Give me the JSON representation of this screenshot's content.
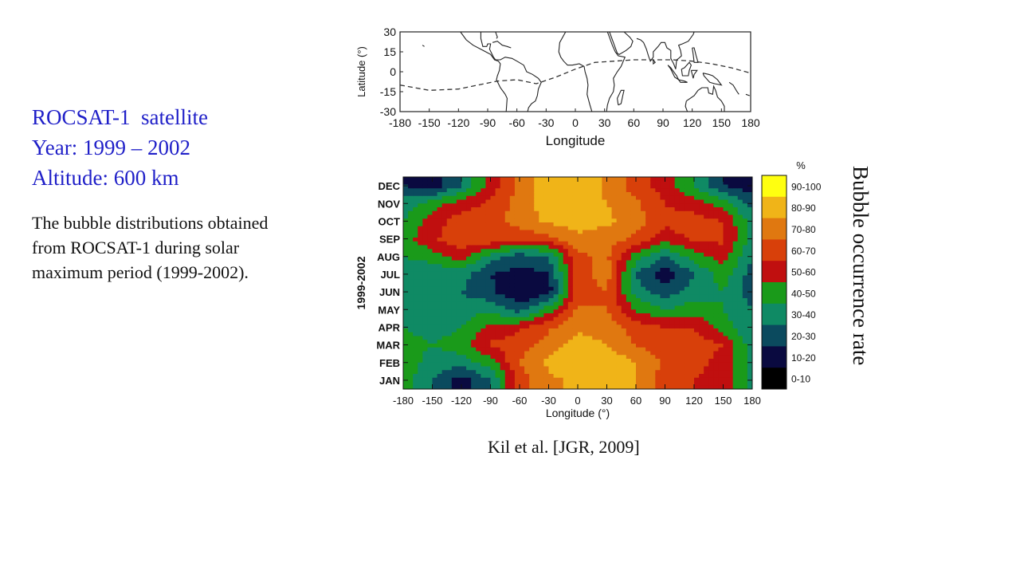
{
  "info": {
    "line1": "ROCSAT-1  satellite",
    "line2": "Year: 1999 – 2002",
    "line3": "Altitude: 600 km",
    "desc": [
      "The bubble distributions obtained",
      "from ROCSAT-1 during solar",
      "maximum period (1999-2002)."
    ]
  },
  "citation": "Kil et al. [JGR, 2009]",
  "rotated_label": "Bubble occurrence rate",
  "colors": {
    "scale": [
      "#000000",
      "#0a0a40",
      "#0b4a5e",
      "#0f8a64",
      "#1a9a1a",
      "#c00f0f",
      "#d8400a",
      "#e07810",
      "#f0b418",
      "#ffff10"
    ],
    "map_line": "#222222"
  },
  "chart_data": [
    {
      "type": "map",
      "xlabel": "Longitude",
      "ylabel": "Latitude (°)",
      "x_ticks": [
        "-180",
        "-150",
        "-120",
        "-90",
        "-60",
        "-30",
        "0",
        "30",
        "60",
        "90",
        "120",
        "150",
        "180"
      ],
      "y_ticks": [
        "30",
        "15",
        "0",
        "-15",
        "-30"
      ],
      "xlim": [
        -180,
        180
      ],
      "ylim": [
        -30,
        30
      ],
      "features": [
        "coastlines",
        "dip equator (dashed)"
      ]
    },
    {
      "type": "heatmap",
      "xlabel": "Longitude (°)",
      "ylabel": "1999-2002",
      "x_ticks": [
        "-180",
        "-150",
        "-120",
        "-90",
        "-60",
        "-30",
        "0",
        "30",
        "60",
        "90",
        "120",
        "150",
        "180"
      ],
      "xlim": [
        -180,
        180
      ],
      "months": [
        "JAN",
        "FEB",
        "MAR",
        "APR",
        "MAY",
        "JUN",
        "JUL",
        "AUG",
        "SEP",
        "OCT",
        "NOV",
        "DEC"
      ],
      "legend_unit": "%",
      "legend": [
        "90-100",
        "80-90",
        "70-80",
        "60-70",
        "50-60",
        "40-50",
        "30-40",
        "20-30",
        "10-20",
        "0-10"
      ],
      "grid_longitudes": [
        -180,
        -150,
        -120,
        -90,
        -60,
        -30,
        0,
        30,
        60,
        90,
        120,
        150,
        180
      ],
      "values": [
        [
          45,
          30,
          15,
          30,
          65,
          78,
          82,
          88,
          80,
          65,
          60,
          55,
          35
        ],
        [
          48,
          35,
          35,
          45,
          70,
          82,
          88,
          88,
          80,
          68,
          65,
          55,
          35
        ],
        [
          45,
          40,
          45,
          62,
          65,
          75,
          85,
          80,
          70,
          65,
          65,
          60,
          35
        ],
        [
          40,
          35,
          40,
          52,
          58,
          68,
          78,
          75,
          65,
          60,
          60,
          45,
          30
        ],
        [
          35,
          30,
          35,
          38,
          25,
          45,
          72,
          70,
          48,
          40,
          45,
          40,
          30
        ],
        [
          35,
          30,
          30,
          22,
          10,
          15,
          65,
          70,
          35,
          25,
          35,
          40,
          25
        ],
        [
          35,
          30,
          35,
          20,
          15,
          20,
          65,
          75,
          30,
          12,
          30,
          45,
          25
        ],
        [
          40,
          45,
          55,
          35,
          25,
          30,
          68,
          72,
          45,
          30,
          45,
          55,
          30
        ],
        [
          45,
          58,
          68,
          68,
          62,
          68,
          78,
          75,
          68,
          55,
          62,
          62,
          35
        ],
        [
          40,
          55,
          65,
          65,
          75,
          82,
          84,
          82,
          75,
          62,
          65,
          60,
          35
        ],
        [
          35,
          45,
          55,
          62,
          75,
          85,
          84,
          80,
          72,
          60,
          55,
          45,
          25
        ],
        [
          20,
          15,
          30,
          55,
          72,
          86,
          86,
          78,
          65,
          55,
          40,
          20,
          15
        ]
      ]
    }
  ]
}
